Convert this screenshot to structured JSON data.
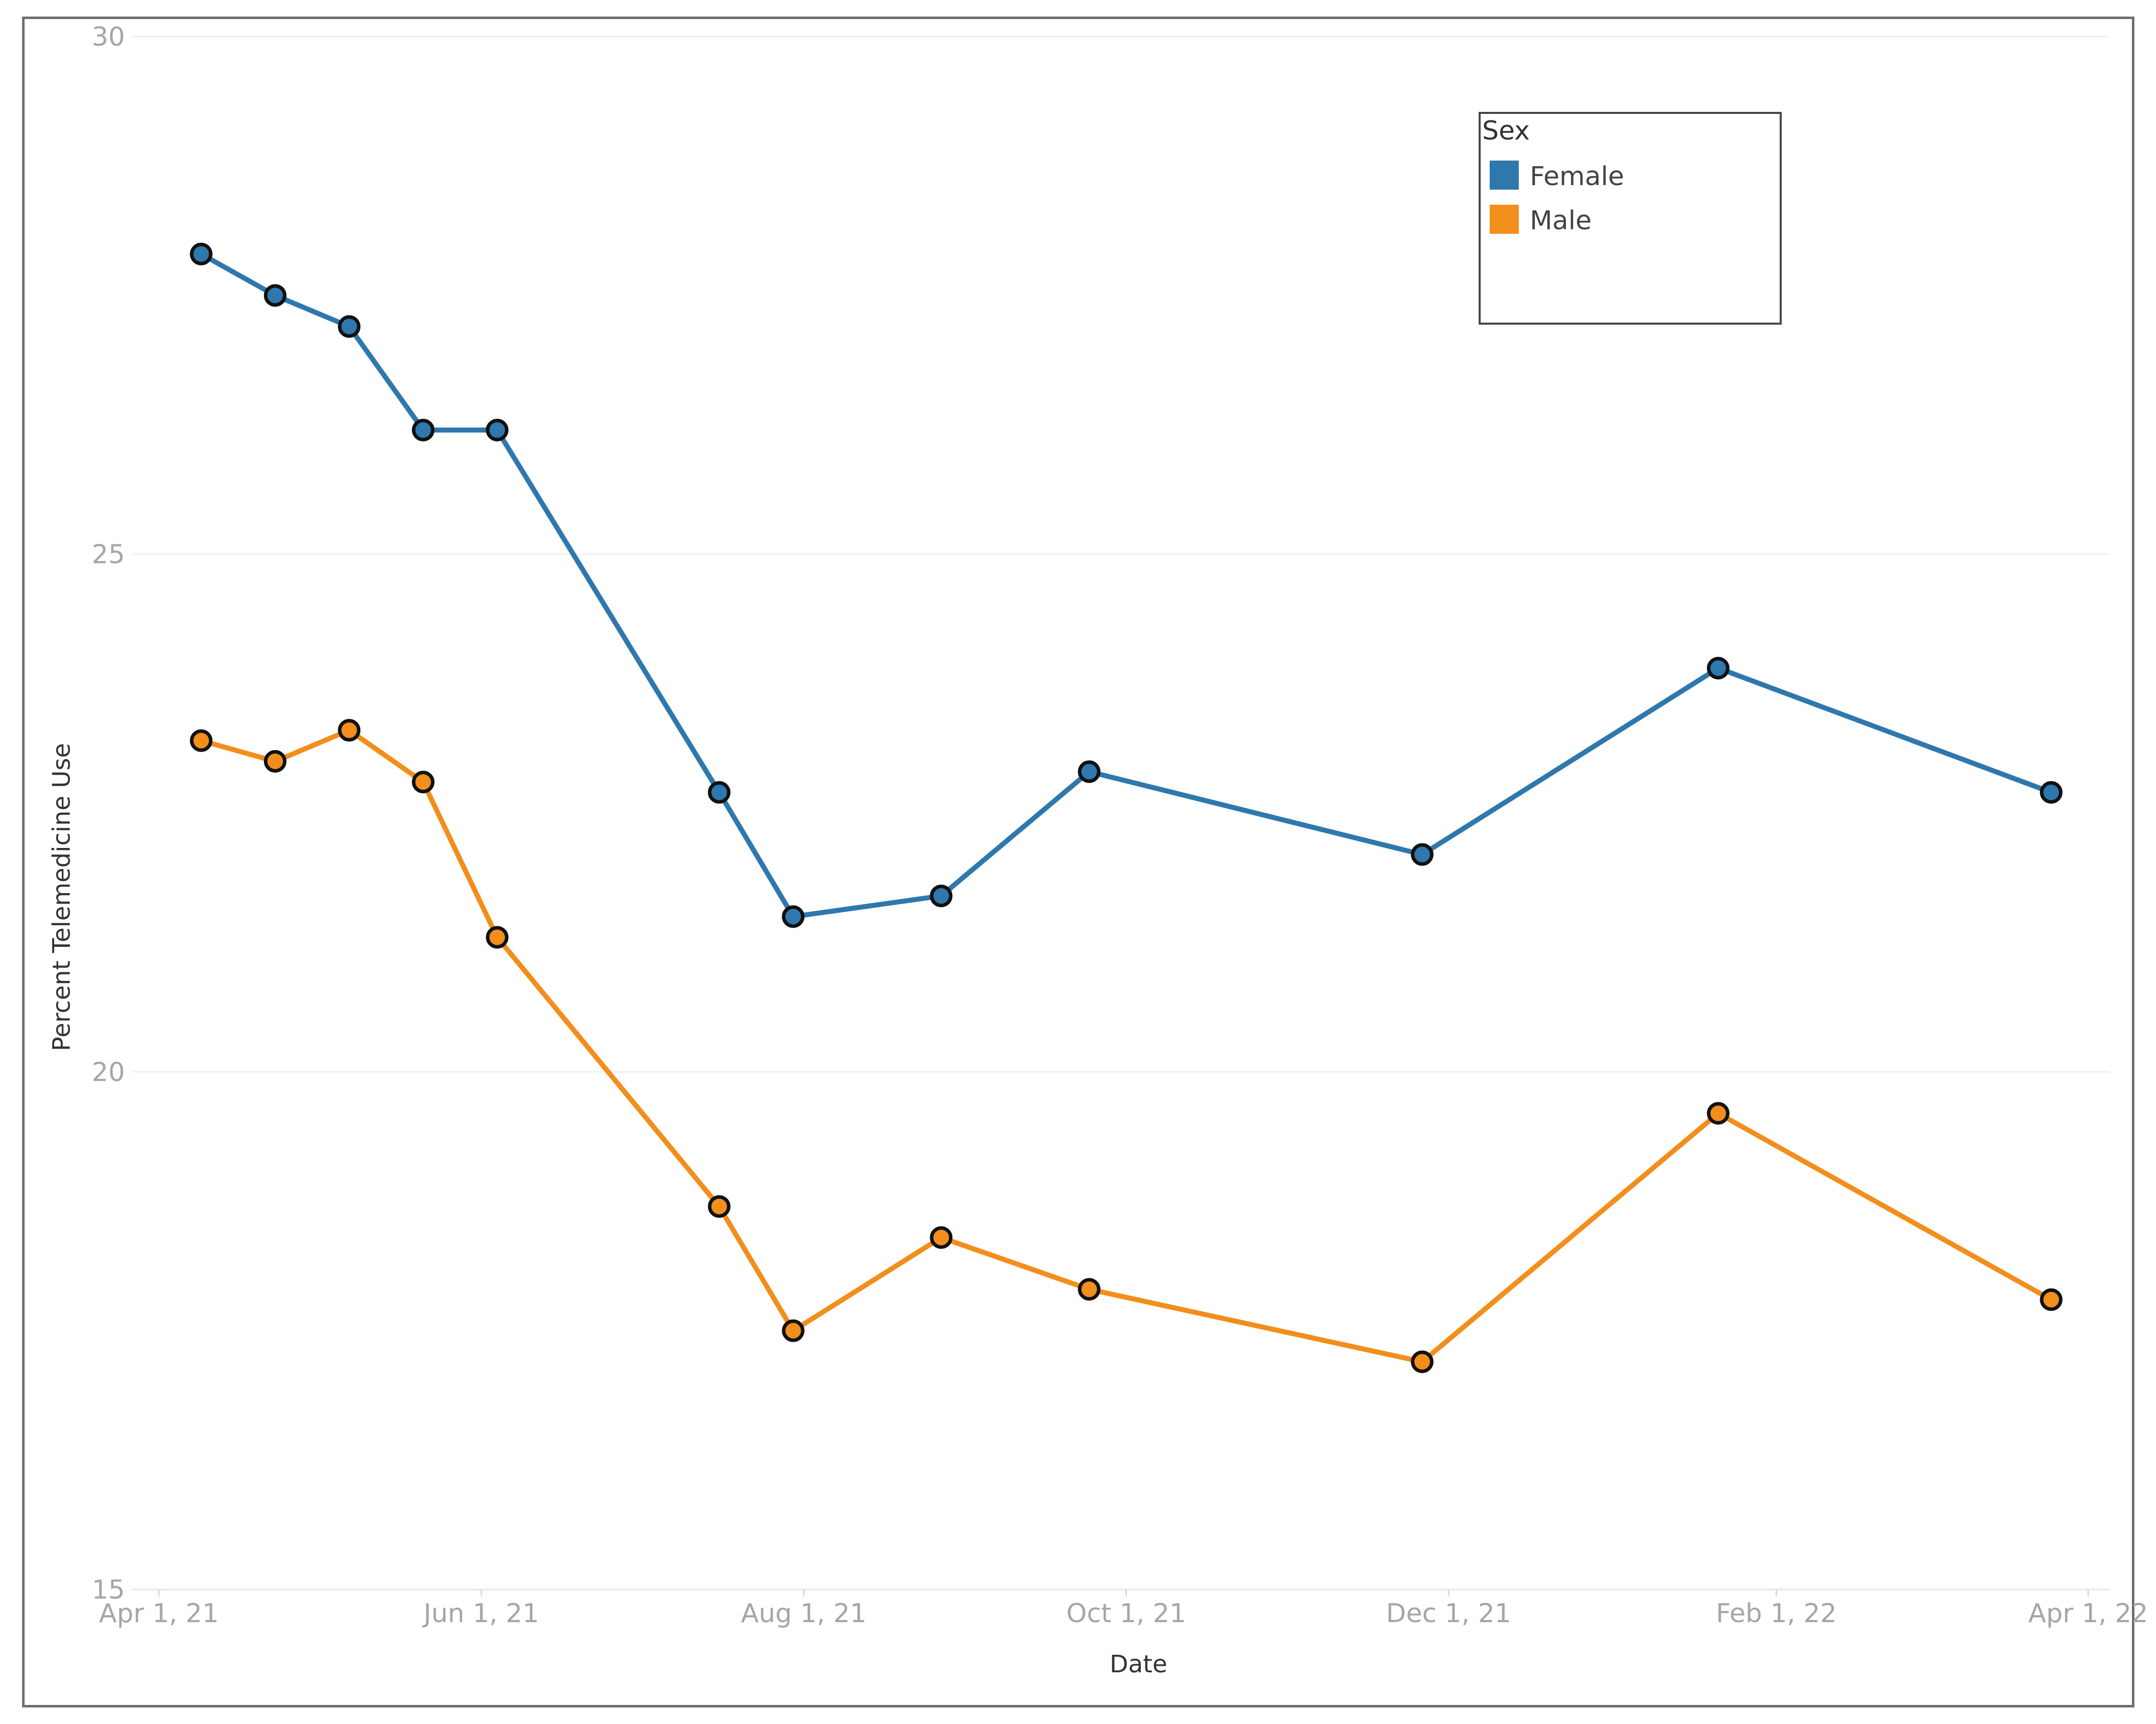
{
  "chart_data": {
    "type": "line",
    "title": "",
    "xlabel": "Date",
    "ylabel": "Percent Telemedicine Use",
    "ylim": [
      15,
      30
    ],
    "yticks": [
      {
        "value": 15,
        "label": "15"
      },
      {
        "value": 20,
        "label": "20"
      },
      {
        "value": 25,
        "label": "25"
      },
      {
        "value": 30,
        "label": "30"
      }
    ],
    "xlim": [
      "2021-03-27",
      "2022-04-05"
    ],
    "xticks": [
      {
        "date": "2021-04-01",
        "label": "Apr 1, 21"
      },
      {
        "date": "2021-06-01",
        "label": "Jun 1, 21"
      },
      {
        "date": "2021-08-01",
        "label": "Aug 1, 21"
      },
      {
        "date": "2021-10-01",
        "label": "Oct 1, 21"
      },
      {
        "date": "2021-12-01",
        "label": "Dec 1, 21"
      },
      {
        "date": "2022-02-01",
        "label": "Feb 1, 22"
      },
      {
        "date": "2022-04-01",
        "label": "Apr 1, 22"
      }
    ],
    "grid": {
      "horizontal": true,
      "vertical": false
    },
    "legend": {
      "title": "Sex",
      "position": "top-right"
    },
    "x": [
      "2021-04-09",
      "2021-04-23",
      "2021-05-07",
      "2021-05-21",
      "2021-06-04",
      "2021-07-16",
      "2021-07-30",
      "2021-08-27",
      "2021-09-24",
      "2021-11-26",
      "2022-01-21",
      "2022-03-25"
    ],
    "series": [
      {
        "name": "Female",
        "color": "#2e78ad",
        "values": [
          27.9,
          27.5,
          27.2,
          26.2,
          26.2,
          22.7,
          21.5,
          21.7,
          22.9,
          22.1,
          23.9,
          22.7
        ]
      },
      {
        "name": "Male",
        "color": "#f28e1c",
        "values": [
          23.2,
          23.0,
          23.3,
          22.8,
          21.3,
          18.7,
          17.5,
          18.4,
          17.9,
          17.2,
          19.6,
          17.8
        ]
      }
    ]
  }
}
